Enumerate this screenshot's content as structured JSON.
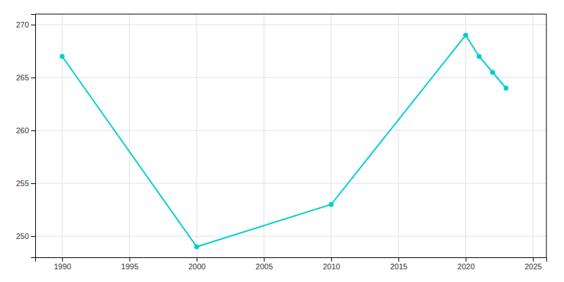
{
  "chart_data": {
    "type": "line",
    "x": [
      1990,
      2000,
      2010,
      2020,
      2021,
      2022,
      2023
    ],
    "values": [
      267.0,
      249.0,
      253.0,
      269.0,
      267.0,
      265.5,
      264.0
    ],
    "color": "#00CED1",
    "marker": "circle",
    "xlim": [
      1988,
      2026
    ],
    "ylim": [
      248,
      271
    ],
    "xticks": [
      1990,
      1995,
      2000,
      2005,
      2010,
      2015,
      2020,
      2025
    ],
    "yticks": [
      250,
      255,
      260,
      265,
      270
    ],
    "grid": true
  }
}
